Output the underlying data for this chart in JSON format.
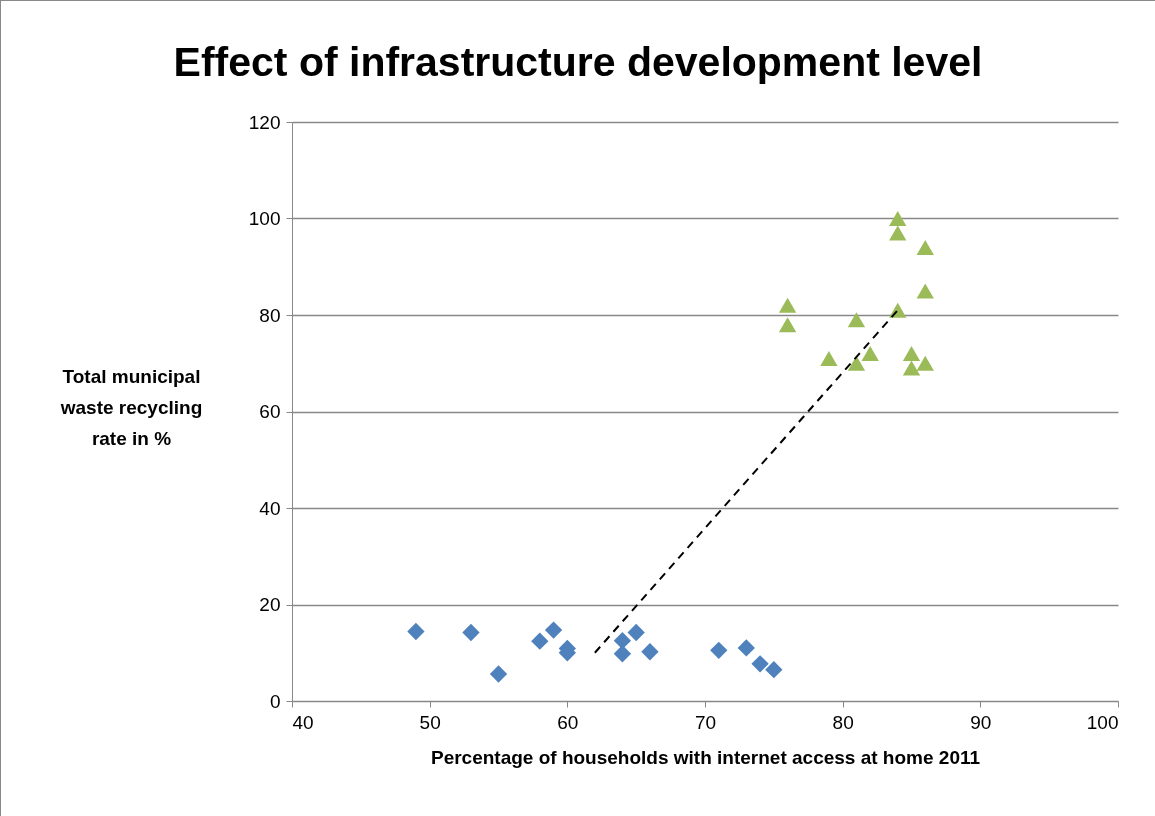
{
  "chart_data": {
    "type": "scatter",
    "title": "Effect of infrastructure development level",
    "xlabel": "Percentage of households with internet access at home 2011",
    "ylabel": "Total municipal waste recycling rate in %",
    "xlim": [
      40,
      100
    ],
    "xticks": [
      40,
      50,
      60,
      70,
      80,
      90,
      100
    ],
    "ylim": [
      0,
      120
    ],
    "yticks": [
      0,
      20,
      40,
      60,
      80,
      100,
      120
    ],
    "grid": "y",
    "series": [
      {
        "marker": "diamond",
        "color": "#4f81bd",
        "x": [
          49,
          53,
          55,
          58,
          59,
          60,
          60,
          64,
          64,
          65,
          66,
          71,
          73,
          74,
          75
        ],
        "values": [
          14.4,
          14.2,
          5.6,
          12.4,
          14.7,
          10.9,
          10.0,
          12.5,
          9.8,
          14.2,
          10.2,
          10.5,
          11.0,
          7.7,
          6.5
        ]
      },
      {
        "marker": "triangle",
        "color": "#9bbb59",
        "x": [
          76,
          76,
          79,
          81,
          81,
          82,
          84,
          84,
          84,
          85,
          85,
          86,
          86,
          86
        ],
        "values": [
          82,
          78,
          71,
          79,
          70,
          72,
          100,
          97,
          81,
          72,
          69,
          94,
          85,
          70
        ]
      },
      {
        "type": "line",
        "line_style": "dashed",
        "color": "#000000",
        "x": [
          62,
          84
        ],
        "values": [
          10,
          81
        ]
      }
    ]
  }
}
